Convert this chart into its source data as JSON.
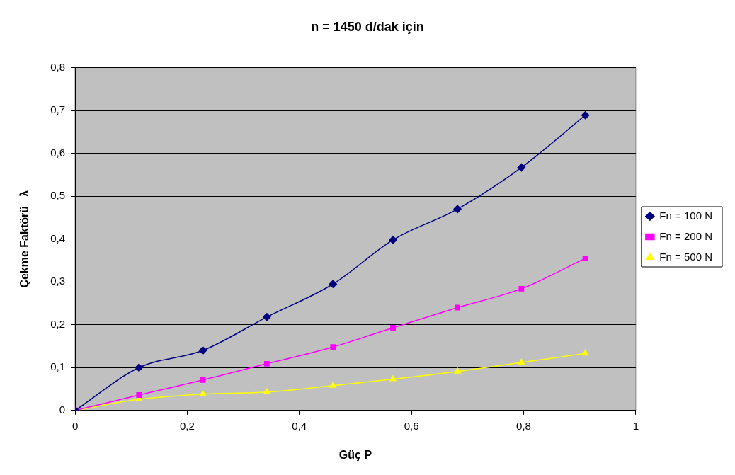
{
  "chart_data": {
    "type": "line",
    "title": "n = 1450 d/dak için",
    "xlabel": "Güç P",
    "ylabel": "Çekme Faktörü   λ",
    "x": [
      0,
      0.114,
      0.228,
      0.342,
      0.46,
      0.567,
      0.682,
      0.796,
      0.91
    ],
    "series": [
      {
        "name": "Fn = 100 N",
        "color": "#000080",
        "marker": "diamond",
        "values": [
          0,
          0.1,
          0.14,
          0.218,
          0.295,
          0.398,
          0.47,
          0.567,
          0.689
        ]
      },
      {
        "name": "Fn = 200 N",
        "color": "#ff00ff",
        "marker": "square",
        "values": [
          0,
          0.036,
          0.071,
          0.109,
          0.148,
          0.193,
          0.24,
          0.284,
          0.355
        ]
      },
      {
        "name": "Fn = 500 N",
        "color": "#ffff00",
        "marker": "triangle",
        "values": [
          0,
          0.026,
          0.038,
          0.043,
          0.058,
          0.073,
          0.091,
          0.112,
          0.133
        ]
      }
    ],
    "xlim": [
      0,
      1
    ],
    "xticks": [
      0,
      {
        "value": 0.2,
        "label": "0,2"
      },
      {
        "value": 0.4,
        "label": "0,4"
      },
      {
        "value": 0.6,
        "label": "0,6"
      },
      {
        "value": 0.8,
        "label": "0,8"
      },
      1
    ],
    "ylim": [
      0,
      0.8
    ],
    "yticks": [
      0,
      {
        "value": 0.1,
        "label": "0,1"
      },
      {
        "value": 0.2,
        "label": "0,2"
      },
      {
        "value": 0.3,
        "label": "0,3"
      },
      {
        "value": 0.4,
        "label": "0,4"
      },
      {
        "value": 0.5,
        "label": "0,5"
      },
      {
        "value": 0.6,
        "label": "0,6"
      },
      {
        "value": 0.7,
        "label": "0,7"
      },
      {
        "value": 0.8,
        "label": "0,8"
      }
    ],
    "grid": "y",
    "legend": "right",
    "line_style": "solid"
  }
}
